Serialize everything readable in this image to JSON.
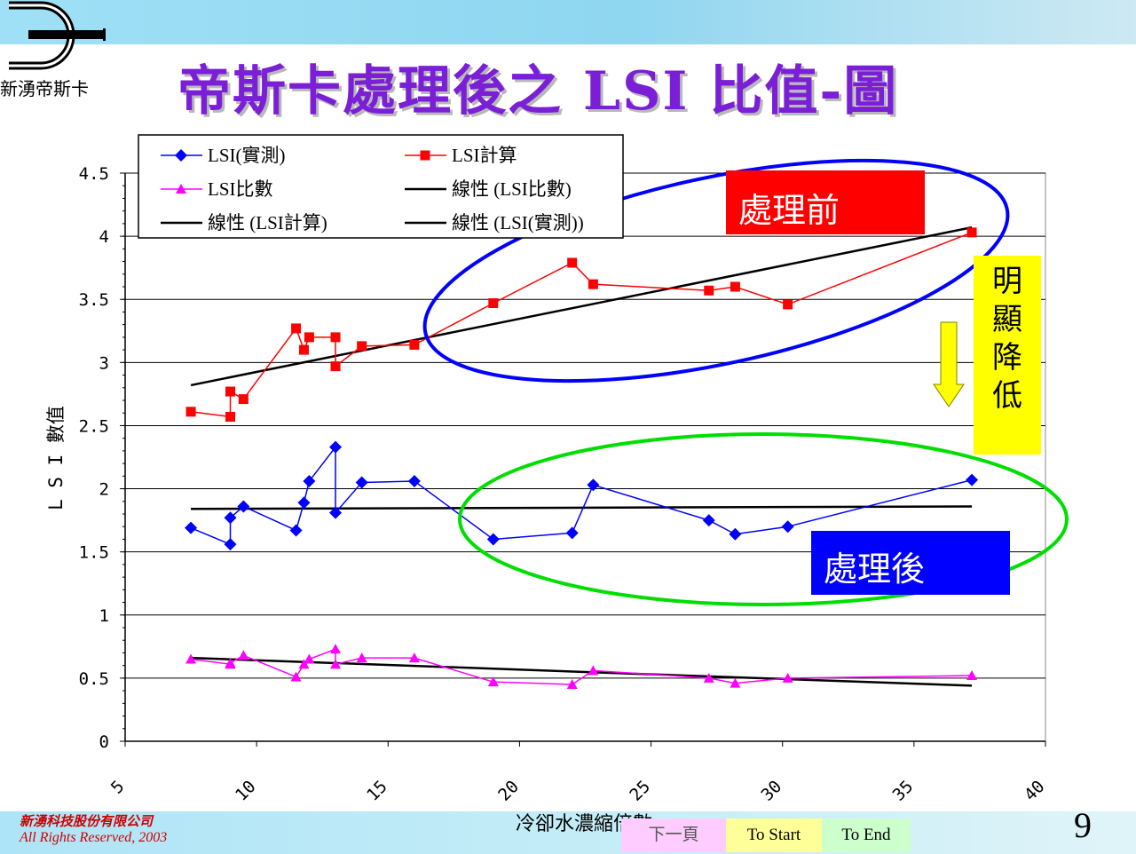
{
  "logo": {
    "text": "新湧帝斯卡"
  },
  "title": "帝斯卡處理後之 LSI 比值-圖",
  "chart_data": {
    "type": "line",
    "xlabel": "冷卻水濃縮倍數",
    "ylabel": "L S I 數值",
    "xlim": [
      5,
      40
    ],
    "ylim": [
      0,
      4.5
    ],
    "x_ticks": [
      "5",
      "10",
      "15",
      "20",
      "25",
      "30",
      "35",
      "40"
    ],
    "y_ticks": [
      "0",
      "0.5",
      "1",
      "1.5",
      "2",
      "2.5",
      "3",
      "3.5",
      "4",
      "4.5"
    ],
    "grid": "horizontal major gridlines",
    "legend_position": "top-left",
    "series": [
      {
        "name": "LSI(實測)",
        "color": "#0000ff",
        "marker": "diamond",
        "points": [
          [
            7.5,
            1.69
          ],
          [
            9,
            1.56
          ],
          [
            9,
            1.77
          ],
          [
            9.5,
            1.86
          ],
          [
            11.5,
            1.67
          ],
          [
            11.8,
            1.89
          ],
          [
            12,
            2.06
          ],
          [
            13,
            2.33
          ],
          [
            13,
            1.81
          ],
          [
            14,
            2.05
          ],
          [
            16,
            2.06
          ],
          [
            19,
            1.6
          ],
          [
            22,
            1.65
          ],
          [
            22.8,
            2.03
          ],
          [
            27.2,
            1.75
          ],
          [
            28.2,
            1.64
          ],
          [
            30.2,
            1.7
          ],
          [
            37.2,
            2.07
          ]
        ]
      },
      {
        "name": "LSI計算",
        "color": "#ff0000",
        "marker": "square",
        "points": [
          [
            7.5,
            2.61
          ],
          [
            9,
            2.57
          ],
          [
            9,
            2.77
          ],
          [
            9.5,
            2.71
          ],
          [
            11.5,
            3.27
          ],
          [
            11.8,
            3.1
          ],
          [
            12,
            3.2
          ],
          [
            13,
            3.2
          ],
          [
            13,
            2.97
          ],
          [
            14,
            3.13
          ],
          [
            16,
            3.14
          ],
          [
            19,
            3.47
          ],
          [
            22,
            3.79
          ],
          [
            22.8,
            3.62
          ],
          [
            27.2,
            3.57
          ],
          [
            28.2,
            3.6
          ],
          [
            30.2,
            3.46
          ],
          [
            37.2,
            4.03
          ]
        ]
      },
      {
        "name": "LSI比數",
        "color": "#ff00ff",
        "marker": "triangle",
        "points": [
          [
            7.5,
            0.65
          ],
          [
            9,
            0.61
          ],
          [
            9,
            0.62
          ],
          [
            9.5,
            0.68
          ],
          [
            11.5,
            0.51
          ],
          [
            11.8,
            0.61
          ],
          [
            12,
            0.65
          ],
          [
            13,
            0.73
          ],
          [
            13,
            0.61
          ],
          [
            14,
            0.66
          ],
          [
            16,
            0.66
          ],
          [
            19,
            0.47
          ],
          [
            22,
            0.45
          ],
          [
            22.8,
            0.56
          ],
          [
            27.2,
            0.5
          ],
          [
            28.2,
            0.46
          ],
          [
            30.2,
            0.5
          ],
          [
            37.2,
            0.52
          ]
        ]
      },
      {
        "name": "線性 (LSI比數)",
        "color": "#000000",
        "trend_of": "LSI比數",
        "points": [
          [
            7.5,
            0.66
          ],
          [
            37.2,
            0.44
          ]
        ]
      },
      {
        "name": "線性 (LSI計算)",
        "color": "#000000",
        "trend_of": "LSI計算",
        "points": [
          [
            7.5,
            2.82
          ],
          [
            37.2,
            4.07
          ]
        ]
      },
      {
        "name": "線性 (LSI(實測))",
        "color": "#000000",
        "trend_of": "LSI(實測)",
        "points": [
          [
            7.5,
            1.84
          ],
          [
            37.2,
            1.86
          ]
        ]
      }
    ],
    "annotations": {
      "before_label": "處理前",
      "after_label": "處理後",
      "note_chars": [
        "明",
        "顯",
        "降",
        "低"
      ],
      "before_ellipse_color": "#0000ff",
      "after_ellipse_color": "#00dd00",
      "arrow_color": "#ffff00"
    }
  },
  "footer": {
    "company": "新湧科技股份有限公司",
    "rights": "All Rights Reserved, 2003",
    "nav_next": "下一頁",
    "nav_start": "To Start",
    "nav_end": "To End",
    "page_number": "9"
  }
}
